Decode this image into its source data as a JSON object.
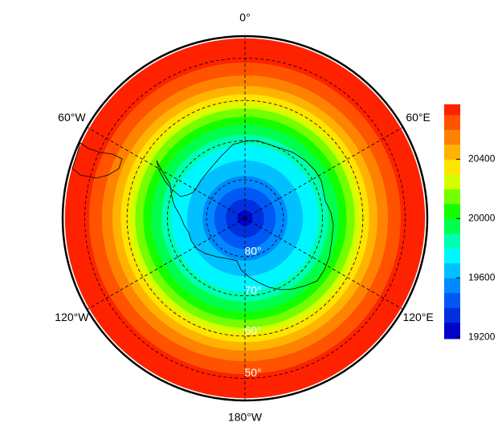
{
  "chart_data": {
    "type": "polar-contour-map",
    "projection": "south-polar-stereographic",
    "lat_limit": -45,
    "contour_levels": [
      19200,
      19300,
      19400,
      19500,
      19600,
      19700,
      19800,
      19900,
      20000,
      20100,
      20200,
      20300,
      20400,
      20500,
      20600,
      20700
    ],
    "contour_lats": [
      -88,
      -85,
      -82,
      -79,
      -75,
      -71,
      -68.5,
      -66,
      -64,
      -62,
      -60.5,
      -58.5,
      -56.5,
      -54,
      -51,
      -45.5
    ],
    "colormap": [
      "#0000c8",
      "#0070ff",
      "#00ffff",
      "#00ff00",
      "#ffff00",
      "#ff8000",
      "#ff0000"
    ],
    "colorlim": [
      19190,
      20770
    ],
    "colorbar_ticks": [
      19200,
      19600,
      20000,
      20400
    ],
    "lat_circles": [
      {
        "value": -80,
        "label": "80°"
      },
      {
        "value": -70,
        "label": "70°"
      },
      {
        "value": -60,
        "label": "60°"
      },
      {
        "value": -50,
        "label": "50°"
      }
    ],
    "meridians": [
      {
        "value": 0,
        "label": "0°"
      },
      {
        "value": 60,
        "label": "60°E"
      },
      {
        "value": 120,
        "label": "120°E"
      },
      {
        "value": -180,
        "label": "180°W"
      },
      {
        "value": -120,
        "label": "120°W"
      },
      {
        "value": -60,
        "label": "60°W"
      }
    ]
  }
}
